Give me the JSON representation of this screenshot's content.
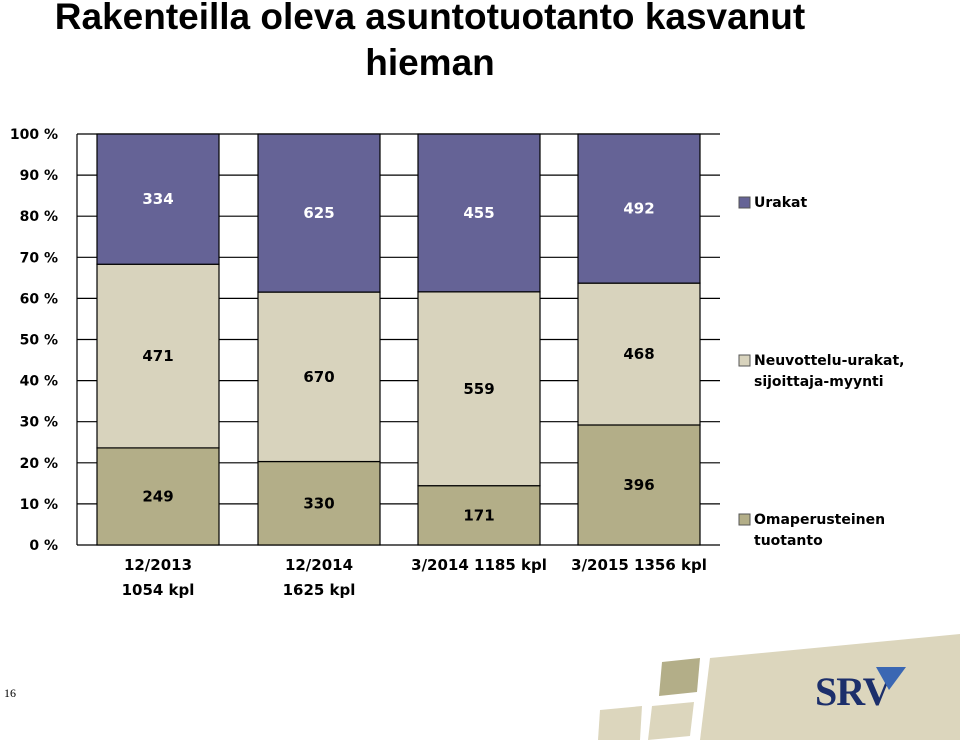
{
  "title": "Rakenteilla oleva asuntotuotanto kasvanut hieman",
  "slide_number": "16",
  "logo_text": "SRV",
  "colors": {
    "urakat": "#656396",
    "neuvottelu": "#d8d3bd",
    "omaperusteinen": "#b3ae88",
    "footer_band": "#dcd6bd",
    "footer_square": "#b3ae88",
    "logo_blue": "#1c2f6b",
    "logo_accent": "#3a67b3"
  },
  "chart_data": {
    "type": "bar",
    "stacked": "percent",
    "categories": [
      [
        "12/2013",
        "1054 kpl"
      ],
      [
        "12/2014",
        "1625 kpl"
      ],
      [
        "3/2014 1185 kpl"
      ],
      [
        "3/2015 1356 kpl"
      ]
    ],
    "series": [
      {
        "name": "Omaperusteinen tuotanto",
        "values": [
          249,
          330,
          171,
          396
        ],
        "color": "#b3ae88"
      },
      {
        "name": "Neuvottelu-urakat, sijoittaja-myynti",
        "values": [
          471,
          670,
          559,
          468
        ],
        "color": "#d8d3bd"
      },
      {
        "name": "Urakat",
        "values": [
          334,
          625,
          455,
          492
        ],
        "color": "#656396"
      }
    ],
    "y_ticks": [
      "0 %",
      "10 %",
      "20 %",
      "30 %",
      "40 %",
      "50 %",
      "60 %",
      "70 %",
      "80 %",
      "90 %",
      "100 %"
    ],
    "ylim": [
      0,
      100
    ],
    "grid": true,
    "legend_position": "right"
  }
}
